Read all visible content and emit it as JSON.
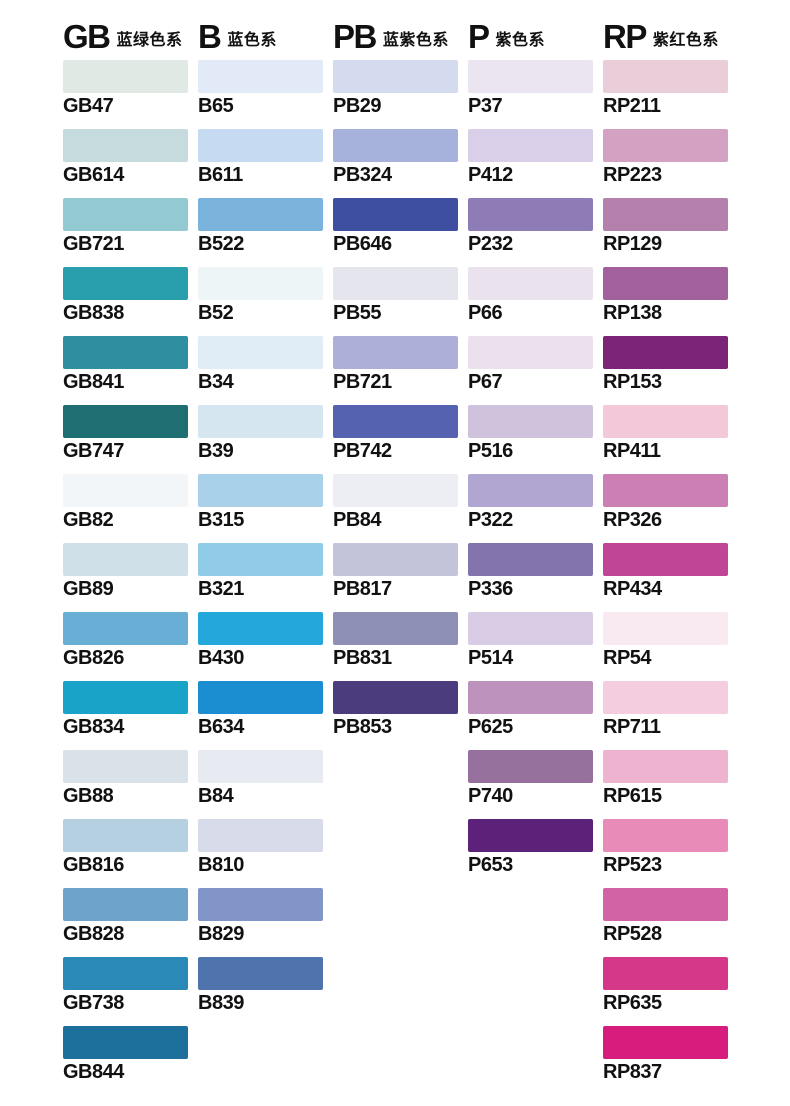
{
  "page": {
    "background": "#ffffff",
    "text_color": "#111111"
  },
  "columns": [
    {
      "code": "GB",
      "name": "蓝绿色系",
      "swatches": [
        {
          "label": "GB47",
          "color": "#e0e9e3"
        },
        {
          "label": "GB614",
          "color": "#c5dbde"
        },
        {
          "label": "GB721",
          "color": "#93cad2"
        },
        {
          "label": "GB838",
          "color": "#299fae"
        },
        {
          "label": "GB841",
          "color": "#2e8fa0"
        },
        {
          "label": "GB747",
          "color": "#1e6e72"
        },
        {
          "label": "GB82",
          "color": "#f3f6f8"
        },
        {
          "label": "GB89",
          "color": "#cfe0e8"
        },
        {
          "label": "GB826",
          "color": "#68aed5"
        },
        {
          "label": "GB834",
          "color": "#19a3c9"
        },
        {
          "label": "GB88",
          "color": "#d9e2e8"
        },
        {
          "label": "GB816",
          "color": "#b5d0e0"
        },
        {
          "label": "GB828",
          "color": "#6ea3cc"
        },
        {
          "label": "GB738",
          "color": "#2b89b7"
        },
        {
          "label": "GB844",
          "color": "#1d6f9c"
        }
      ]
    },
    {
      "code": "B",
      "name": "蓝色系",
      "swatches": [
        {
          "label": "B65",
          "color": "#e2eaf7"
        },
        {
          "label": "B611",
          "color": "#c6daf1"
        },
        {
          "label": "B522",
          "color": "#7ab4dc"
        },
        {
          "label": "B52",
          "color": "#eef5f7"
        },
        {
          "label": "B34",
          "color": "#e0edf7"
        },
        {
          "label": "B39",
          "color": "#d5e6f1"
        },
        {
          "label": "B315",
          "color": "#a9d2ea"
        },
        {
          "label": "B321",
          "color": "#90cbe8"
        },
        {
          "label": "B430",
          "color": "#24a7db"
        },
        {
          "label": "B634",
          "color": "#1b8dd1"
        },
        {
          "label": "B84",
          "color": "#e8eaf2"
        },
        {
          "label": "B810",
          "color": "#d8dcea"
        },
        {
          "label": "B829",
          "color": "#8295c8"
        },
        {
          "label": "B839",
          "color": "#4e73ad"
        }
      ]
    },
    {
      "code": "PB",
      "name": "蓝紫色系",
      "swatches": [
        {
          "label": "PB29",
          "color": "#d5dbee"
        },
        {
          "label": "PB324",
          "color": "#a6b1dc"
        },
        {
          "label": "PB646",
          "color": "#3e4fa1"
        },
        {
          "label": "PB55",
          "color": "#e4e5ed"
        },
        {
          "label": "PB721",
          "color": "#aeafd8"
        },
        {
          "label": "PB742",
          "color": "#5562af"
        },
        {
          "label": "PB84",
          "color": "#ededf4"
        },
        {
          "label": "PB817",
          "color": "#c3c3d9"
        },
        {
          "label": "PB831",
          "color": "#8e90b5"
        },
        {
          "label": "PB853",
          "color": "#4b3d7d"
        }
      ]
    },
    {
      "code": "P",
      "name": "紫色系",
      "swatches": [
        {
          "label": "P37",
          "color": "#ebe5f1"
        },
        {
          "label": "P412",
          "color": "#d9cfe9"
        },
        {
          "label": "P232",
          "color": "#8d7cb5"
        },
        {
          "label": "P66",
          "color": "#eae3ee"
        },
        {
          "label": "P67",
          "color": "#eae1ec"
        },
        {
          "label": "P516",
          "color": "#cec2dd"
        },
        {
          "label": "P322",
          "color": "#b1a5d1"
        },
        {
          "label": "P336",
          "color": "#8374ae"
        },
        {
          "label": "P514",
          "color": "#d8cde5"
        },
        {
          "label": "P625",
          "color": "#bd93be"
        },
        {
          "label": "P740",
          "color": "#96719d"
        },
        {
          "label": "P653",
          "color": "#5c2179"
        }
      ]
    },
    {
      "code": "RP",
      "name": "紫红色系",
      "swatches": [
        {
          "label": "RP211",
          "color": "#e9ced9"
        },
        {
          "label": "RP223",
          "color": "#d3a2c3"
        },
        {
          "label": "RP129",
          "color": "#b481ac"
        },
        {
          "label": "RP138",
          "color": "#a2619c"
        },
        {
          "label": "RP153",
          "color": "#7b2478"
        },
        {
          "label": "RP411",
          "color": "#f3c9da"
        },
        {
          "label": "RP326",
          "color": "#cb7fb2"
        },
        {
          "label": "RP434",
          "color": "#c04597"
        },
        {
          "label": "RP54",
          "color": "#f9eaf1"
        },
        {
          "label": "RP711",
          "color": "#f4cede"
        },
        {
          "label": "RP615",
          "color": "#eeb3ce"
        },
        {
          "label": "RP523",
          "color": "#e88bb8"
        },
        {
          "label": "RP528",
          "color": "#d263a4"
        },
        {
          "label": "RP635",
          "color": "#d63889"
        },
        {
          "label": "RP837",
          "color": "#d61d7e"
        }
      ]
    }
  ]
}
